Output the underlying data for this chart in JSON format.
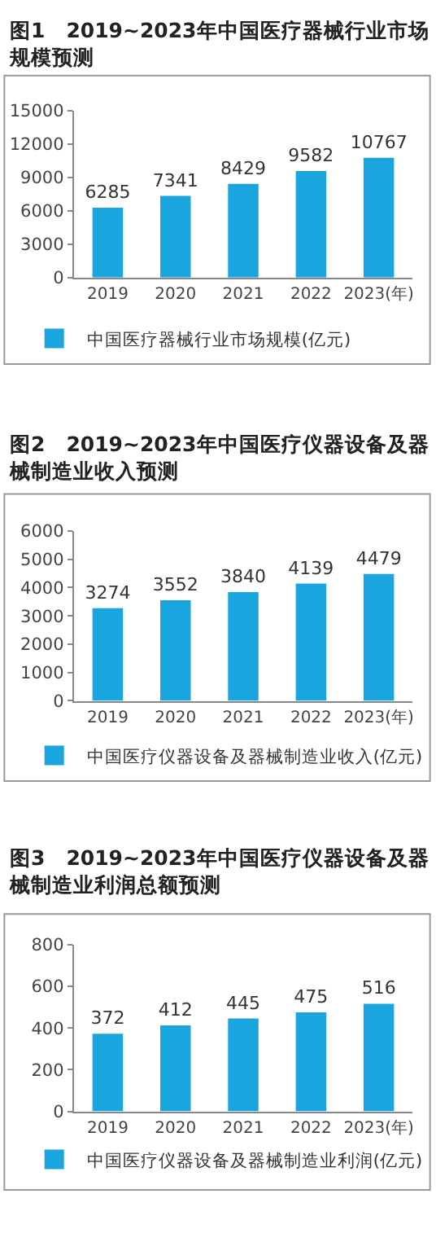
{
  "chart_data": [
    {
      "type": "bar",
      "title": "图1　2019~2023年中国医疗器械行业市场规模预测",
      "categories": [
        "2019",
        "2020",
        "2021",
        "2022",
        "2023(年)"
      ],
      "series": [
        {
          "name": "中国医疗器械行业市场规模(亿元)",
          "color": "#1aa5de",
          "values": [
            6285,
            7341,
            8429,
            9582,
            10767
          ]
        }
      ],
      "ylim": [
        0,
        15000
      ],
      "yticks": [
        0,
        3000,
        6000,
        9000,
        12000,
        15000
      ],
      "data_labels": true,
      "legend": "bottom"
    },
    {
      "type": "bar",
      "title": "图2　2019~2023年中国医疗仪器设备及器械制造业收入预测",
      "categories": [
        "2019",
        "2020",
        "2021",
        "2022",
        "2023(年)"
      ],
      "series": [
        {
          "name": "中国医疗仪器设备及器械制造业收入(亿元)",
          "color": "#1aa5de",
          "values": [
            3274,
            3552,
            3840,
            4139,
            4479
          ]
        }
      ],
      "ylim": [
        0,
        6000
      ],
      "yticks": [
        0,
        1000,
        2000,
        3000,
        4000,
        5000,
        6000
      ],
      "data_labels": true,
      "legend": "bottom"
    },
    {
      "type": "bar",
      "title": "图3　2019~2023年中国医疗仪器设备及器械制造业利润总额预测",
      "categories": [
        "2019",
        "2020",
        "2021",
        "2022",
        "2023(年)"
      ],
      "series": [
        {
          "name": "中国医疗仪器设备及器械制造业利润(亿元)",
          "color": "#1aa5de",
          "values": [
            372,
            412,
            445,
            475,
            516
          ]
        }
      ],
      "ylim": [
        0,
        800
      ],
      "yticks": [
        0,
        200,
        400,
        600,
        800
      ],
      "data_labels": true,
      "legend": "bottom"
    }
  ]
}
